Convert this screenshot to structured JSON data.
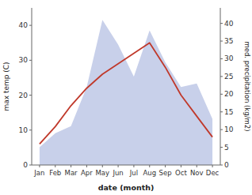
{
  "chart_data": {
    "type": "line",
    "xlabel": "date (month)",
    "ylabel": "max temp (C)",
    "y2label": "med. precipitation (kg/m2)",
    "categories": [
      "Jan",
      "Feb",
      "Mar",
      "Apr",
      "May",
      "Jun",
      "Jul",
      "Aug",
      "Sep",
      "Oct",
      "Nov",
      "Dec"
    ],
    "series": [
      {
        "type": "area",
        "axis": "y2",
        "color": "#c8d0ea",
        "values": [
          5,
          9,
          11,
          22,
          41,
          34,
          25,
          38,
          29,
          22,
          23,
          13
        ]
      },
      {
        "type": "line",
        "color": "#c0392b",
        "values": [
          6,
          11,
          17,
          22,
          26,
          29,
          32,
          35,
          28,
          20,
          14,
          8
        ]
      }
    ],
    "ylim": [
      0,
      45
    ],
    "yticks": [
      0,
      10,
      20,
      30,
      40
    ],
    "y2lim": [
      0,
      44.375
    ],
    "y2ticks": [
      0,
      5,
      10,
      15,
      20,
      25,
      30,
      35,
      40
    ],
    "grid": false
  }
}
